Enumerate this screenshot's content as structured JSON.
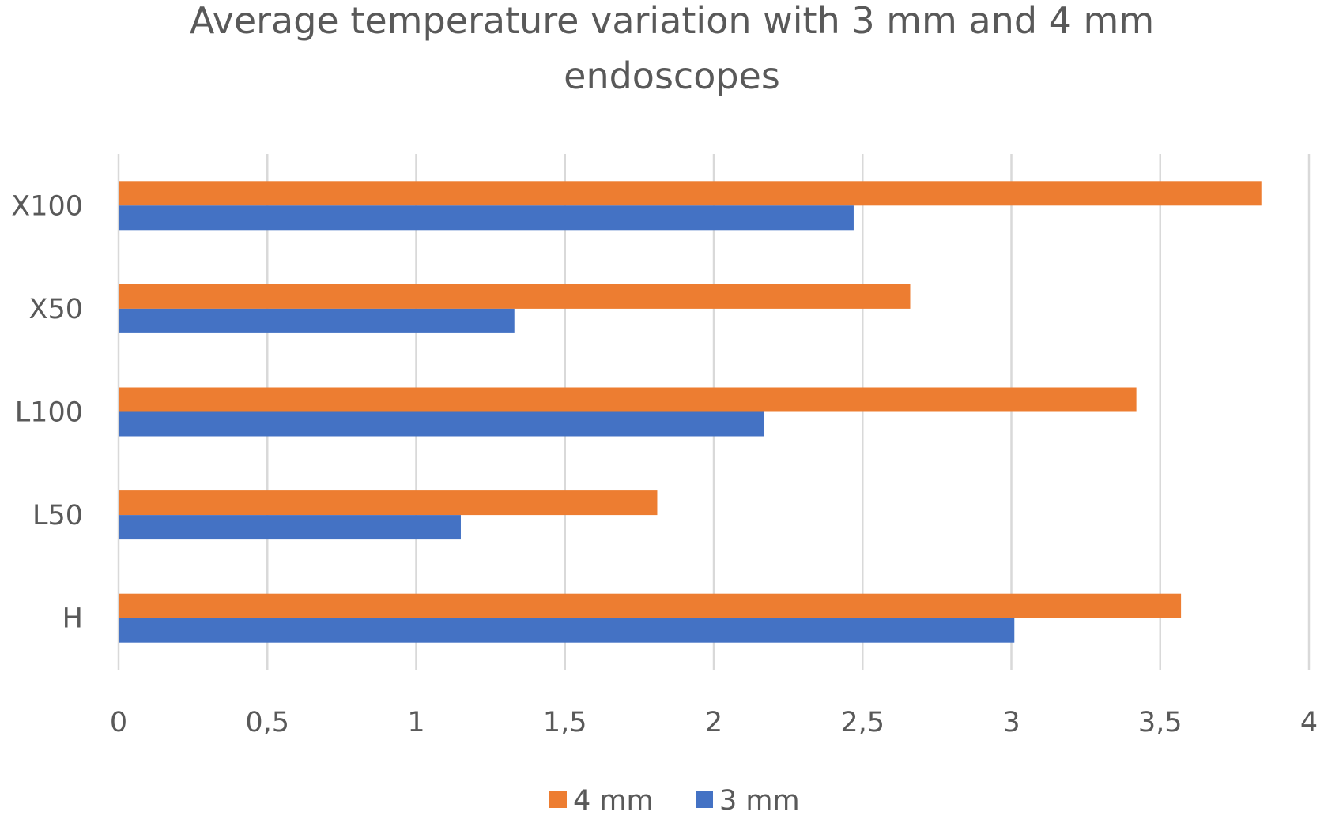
{
  "chart_data": {
    "type": "bar",
    "orientation": "horizontal",
    "title": [
      "Average temperature variation with 3 mm and 4 mm",
      "endoscopes"
    ],
    "categories": [
      "H",
      "L50",
      "L100",
      "X50",
      "X100"
    ],
    "series": [
      {
        "name": "4 mm",
        "color": "#ED7D31",
        "values": [
          3.57,
          1.81,
          3.42,
          2.66,
          3.84
        ]
      },
      {
        "name": "3 mm",
        "color": "#4472C4",
        "values": [
          3.01,
          1.15,
          2.17,
          1.33,
          2.47
        ]
      }
    ],
    "xticks": [
      "0",
      "0,5",
      "1",
      "1,5",
      "2",
      "2,5",
      "3",
      "3,5",
      "4"
    ],
    "xlim": [
      0,
      4
    ],
    "xlabel": "",
    "ylabel": "",
    "grid": "vertical",
    "legend_position": "bottom"
  }
}
